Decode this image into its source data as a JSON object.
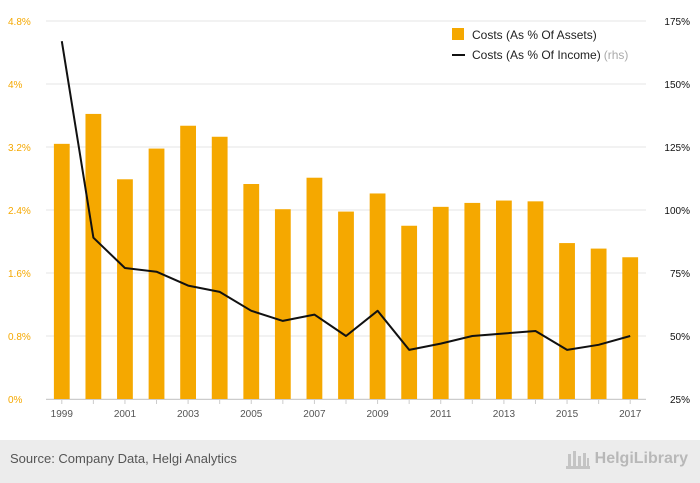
{
  "chart_data": {
    "type": "bar+line",
    "categories": [
      "1999",
      "2000",
      "2001",
      "2002",
      "2003",
      "2004",
      "2005",
      "2006",
      "2007",
      "2008",
      "2009",
      "2010",
      "2011",
      "2012",
      "2013",
      "2014",
      "2015",
      "2016",
      "2017"
    ],
    "x_tick_labels": [
      "1999",
      "2001",
      "2003",
      "2005",
      "2007",
      "2009",
      "2011",
      "2013",
      "2015",
      "2017"
    ],
    "series": [
      {
        "name": "Costs (As % Of Assets)",
        "axis": "left",
        "type": "bar",
        "color": "#f5a800",
        "values": [
          3.24,
          3.62,
          2.79,
          3.18,
          3.47,
          3.33,
          2.73,
          2.41,
          2.81,
          2.38,
          2.61,
          2.2,
          2.44,
          2.49,
          2.52,
          2.51,
          1.98,
          1.91,
          1.8
        ]
      },
      {
        "name": "Costs (As % Of Income)",
        "axis": "right",
        "type": "line",
        "color": "#111111",
        "values": [
          167,
          89,
          77,
          75.5,
          70,
          67.5,
          60,
          56,
          58.5,
          50,
          60,
          44.5,
          47,
          50,
          51,
          52,
          44.5,
          46.5,
          50
        ]
      }
    ],
    "left_axis": {
      "min": 0,
      "max": 4.8,
      "ticks": [
        "0%",
        "0.8%",
        "1.6%",
        "2.4%",
        "3.2%",
        "4%",
        "4.8%"
      ]
    },
    "right_axis": {
      "min": 25,
      "max": 175,
      "ticks": [
        "25%",
        "50%",
        "75%",
        "100%",
        "125%",
        "150%",
        "175%"
      ]
    },
    "legend": {
      "position": "top-right",
      "rhs_note": "(rhs)"
    },
    "grid": true,
    "colors": {
      "bar": "#f5a800",
      "line": "#111111",
      "left_tick": "#f5a800",
      "right_tick": "#111111",
      "grid": "#e4e4e4"
    }
  },
  "footer": {
    "source": "Source: Company Data, Helgi Analytics",
    "brand": "HelgiLibrary"
  }
}
